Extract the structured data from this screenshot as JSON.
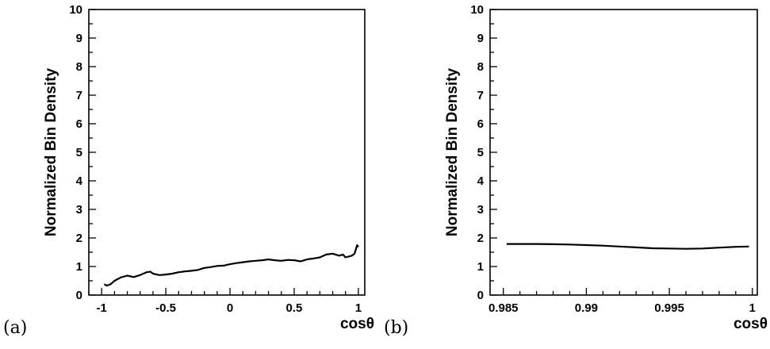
{
  "chart_data": [
    {
      "type": "line",
      "panel_label": "(a)",
      "xlabel": "cosθ",
      "ylabel": "Normalized Bin Density",
      "xlim": [
        -1.1,
        1.05
      ],
      "ylim": [
        0,
        10
      ],
      "xticks": [
        "-1",
        "-0.5",
        "0",
        "0.5",
        "1"
      ],
      "yticks": [
        "0",
        "1",
        "2",
        "3",
        "4",
        "5",
        "6",
        "7",
        "8",
        "9",
        "10"
      ],
      "grid": false,
      "series": [
        {
          "x": [
            -0.98,
            -0.96,
            -0.93,
            -0.9,
            -0.85,
            -0.8,
            -0.75,
            -0.7,
            -0.65,
            -0.62,
            -0.6,
            -0.55,
            -0.5,
            -0.45,
            -0.4,
            -0.35,
            -0.3,
            -0.25,
            -0.2,
            -0.15,
            -0.1,
            -0.05,
            0,
            0.05,
            0.1,
            0.15,
            0.2,
            0.25,
            0.3,
            0.35,
            0.4,
            0.45,
            0.5,
            0.55,
            0.6,
            0.65,
            0.7,
            0.75,
            0.8,
            0.85,
            0.88,
            0.9,
            0.95,
            0.97,
            0.98,
            0.99,
            1.0
          ],
          "y": [
            0.38,
            0.33,
            0.38,
            0.5,
            0.62,
            0.68,
            0.63,
            0.7,
            0.8,
            0.82,
            0.75,
            0.7,
            0.72,
            0.75,
            0.8,
            0.83,
            0.85,
            0.88,
            0.95,
            0.98,
            1.02,
            1.03,
            1.08,
            1.12,
            1.15,
            1.18,
            1.2,
            1.22,
            1.25,
            1.22,
            1.2,
            1.23,
            1.22,
            1.18,
            1.25,
            1.28,
            1.32,
            1.42,
            1.45,
            1.38,
            1.42,
            1.32,
            1.38,
            1.45,
            1.6,
            1.75,
            1.68
          ]
        }
      ]
    },
    {
      "type": "line",
      "panel_label": "(b)",
      "xlabel": "cosθ",
      "ylabel": "Normalized Bin Density",
      "xlim": [
        0.9842,
        1.0003
      ],
      "ylim": [
        0,
        10
      ],
      "xticks": [
        "0.985",
        "0.99",
        "0.995",
        "1"
      ],
      "yticks": [
        "0",
        "1",
        "2",
        "3",
        "4",
        "5",
        "6",
        "7",
        "8",
        "9",
        "10"
      ],
      "grid": false,
      "series": [
        {
          "x": [
            0.9852,
            0.986,
            0.987,
            0.988,
            0.989,
            0.99,
            0.991,
            0.992,
            0.993,
            0.994,
            0.995,
            0.996,
            0.997,
            0.998,
            0.999,
            0.9998
          ],
          "y": [
            1.79,
            1.79,
            1.79,
            1.78,
            1.77,
            1.75,
            1.73,
            1.7,
            1.67,
            1.64,
            1.63,
            1.62,
            1.63,
            1.66,
            1.69,
            1.7
          ]
        }
      ]
    }
  ]
}
